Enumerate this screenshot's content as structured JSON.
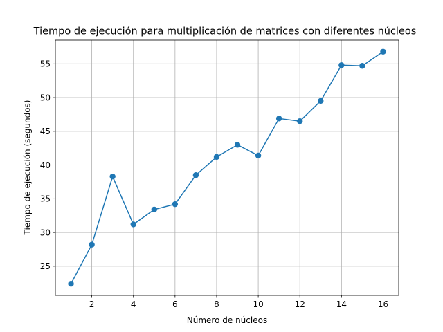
{
  "chart_data": {
    "type": "line",
    "title": "Tiempo de ejecución para multiplicación de matrices con diferentes núcleos",
    "xlabel": "Número de núcleos",
    "ylabel": "Tiempo de ejecución (segundos)",
    "x": [
      1,
      2,
      3,
      4,
      5,
      6,
      7,
      8,
      9,
      10,
      11,
      12,
      13,
      14,
      15,
      16
    ],
    "series": [
      {
        "name": "Tiempo de ejecución",
        "values": [
          22.4,
          28.2,
          38.3,
          31.2,
          33.4,
          34.2,
          38.5,
          41.2,
          43.0,
          41.4,
          46.9,
          46.5,
          49.5,
          54.8,
          54.7,
          56.8
        ],
        "color": "#1f77b4",
        "marker": "circle"
      }
    ],
    "xlim": [
      0.25,
      16.75
    ],
    "ylim": [
      20.68,
      58.52
    ],
    "xticks": [
      2,
      4,
      6,
      8,
      10,
      12,
      14,
      16
    ],
    "yticks": [
      25,
      30,
      35,
      40,
      45,
      50,
      55
    ],
    "grid": true
  }
}
